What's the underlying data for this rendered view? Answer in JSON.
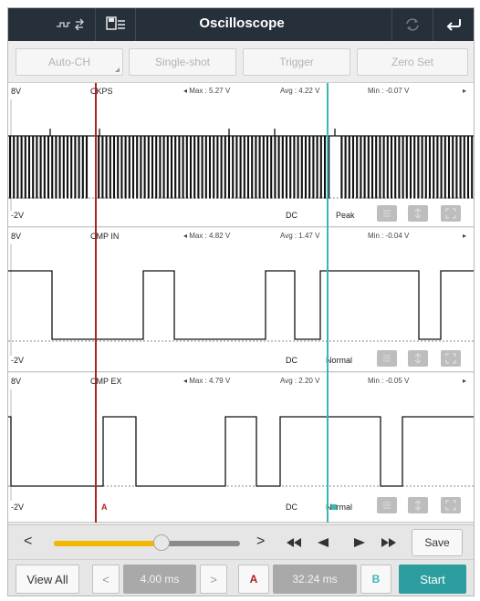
{
  "header": {
    "title": "Oscilloscope"
  },
  "toolbar": {
    "buttons": [
      {
        "label": "Auto-CH"
      },
      {
        "label": "Single-shot"
      },
      {
        "label": "Trigger"
      },
      {
        "label": "Zero Set"
      }
    ]
  },
  "channels": [
    {
      "name": "CKPS",
      "top_scale": "8V",
      "bottom_scale": "-2V",
      "max": "Max : 5.27 V",
      "avg": "Avg : 4.22 V",
      "min": "Min : -0.07 V",
      "coupling": "DC",
      "mode": "Peak"
    },
    {
      "name": "CMP IN",
      "top_scale": "8V",
      "bottom_scale": "-2V",
      "max": "Max : 4.82 V",
      "avg": "Avg : 1.47 V",
      "min": "Min : -0.04 V",
      "coupling": "DC",
      "mode": "Normal"
    },
    {
      "name": "CMP EX",
      "top_scale": "8V",
      "bottom_scale": "-2V",
      "max": "Max : 4.79 V",
      "avg": "Avg : 2.20 V",
      "min": "Min : -0.05 V",
      "coupling": "DC",
      "mode": "Normal"
    }
  ],
  "cursors": {
    "a_label": "A",
    "b_label": "B",
    "a_color": "#b02020",
    "b_color": "#39b7b5"
  },
  "scroll": {
    "left_arrow": "<",
    "right_arrow": ">",
    "position_fraction": 0.58,
    "fill_color": "#f2b800"
  },
  "controls": {
    "save_label": "Save",
    "view_all_label": "View All",
    "prev_label": "<",
    "next_label": ">",
    "time_div": "4.00 ms",
    "cursor_a_label": "A",
    "cursor_delta": "32.24 ms",
    "cursor_b_label": "B",
    "start_label": "Start"
  },
  "colors": {
    "titlebar": "#26303b",
    "accent": "#2d9ea0",
    "trace": "#111111"
  }
}
